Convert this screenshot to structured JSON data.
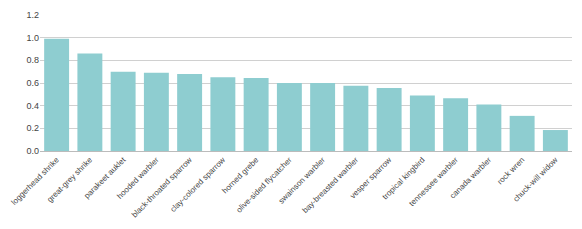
{
  "chart_data": {
    "type": "bar",
    "categories": [
      "loggerhead shrike",
      "great-grey shrike",
      "parakeet auklet",
      "hooded warbler",
      "black-throated sparrow",
      "clay-colored sparrow",
      "horned grebe",
      "olive-sided flycatcher",
      "swainson warbler",
      "bay-breasted warbler",
      "vesper sparrow",
      "tropical kingbird",
      "tennessee warbler",
      "canada warbler",
      "rock wren",
      "chuck-will widow"
    ],
    "values": [
      0.99,
      0.86,
      0.7,
      0.69,
      0.68,
      0.65,
      0.645,
      0.6,
      0.6,
      0.575,
      0.555,
      0.49,
      0.465,
      0.41,
      0.31,
      0.185
    ],
    "color": "#8ecdd0",
    "ylim": [
      0,
      1.2
    ],
    "yticks": [
      {
        "value": 0,
        "label": "0.0"
      },
      0.2,
      0.4,
      0.6,
      0.8,
      {
        "value": 1.0,
        "label": "1.0"
      },
      1.2
    ],
    "grid": true
  }
}
